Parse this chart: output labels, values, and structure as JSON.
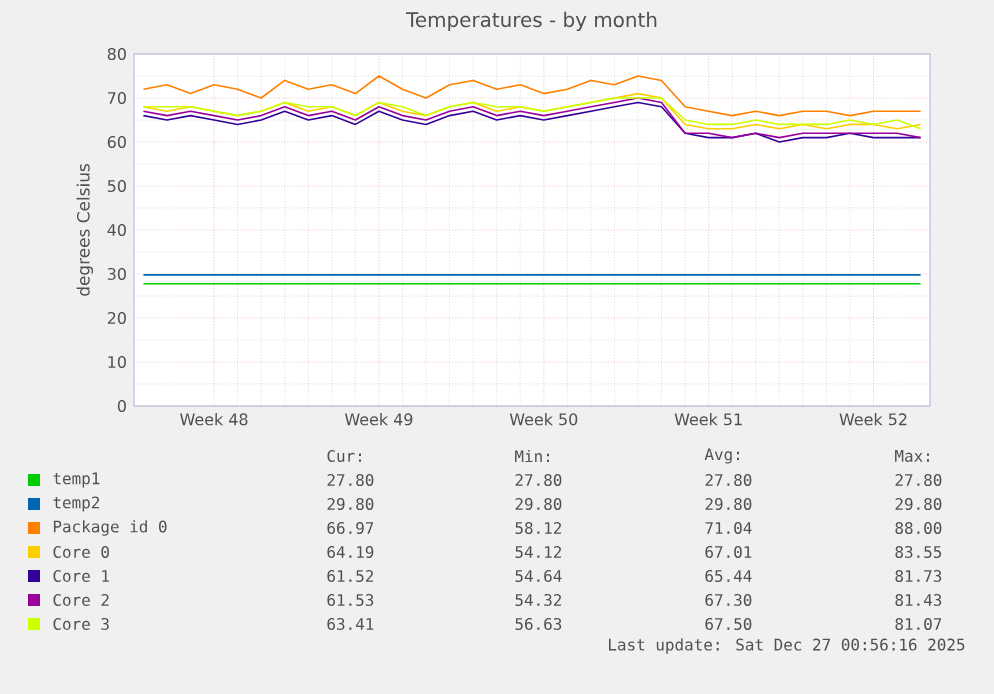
{
  "chart_data": {
    "type": "line",
    "title": "Temperatures - by month",
    "ylabel": "degrees Celsius",
    "categories": [
      null,
      null,
      null,
      "Week 48",
      null,
      null,
      null,
      null,
      null,
      null,
      "Week 49",
      null,
      null,
      null,
      null,
      null,
      null,
      "Week 50",
      null,
      null,
      null,
      null,
      null,
      null,
      "Week 51",
      null,
      null,
      null,
      null,
      null,
      null,
      "Week 52",
      null,
      null
    ],
    "ylim": [
      0,
      80
    ],
    "yticks": [
      0,
      10,
      20,
      30,
      40,
      50,
      60,
      70,
      80
    ],
    "grid": true,
    "legend": "bottom",
    "marker": "none",
    "line_style": "solid",
    "series": [
      {
        "name": "temp1",
        "color": "#00cc00",
        "values": [
          27.8,
          27.8,
          27.8,
          27.8,
          27.8,
          27.8,
          27.8,
          27.8,
          27.8,
          27.8,
          27.8,
          27.8,
          27.8,
          27.8,
          27.8,
          27.8,
          27.8,
          27.8,
          27.8,
          27.8,
          27.8,
          27.8,
          27.8,
          27.8,
          27.8,
          27.8,
          27.8,
          27.8,
          27.8,
          27.8,
          27.8,
          27.8,
          27.8,
          27.8
        ]
      },
      {
        "name": "temp2",
        "color": "#0066b3",
        "values": [
          29.8,
          29.8,
          29.8,
          29.8,
          29.8,
          29.8,
          29.8,
          29.8,
          29.8,
          29.8,
          29.8,
          29.8,
          29.8,
          29.8,
          29.8,
          29.8,
          29.8,
          29.8,
          29.8,
          29.8,
          29.8,
          29.8,
          29.8,
          29.8,
          29.8,
          29.8,
          29.8,
          29.8,
          29.8,
          29.8,
          29.8,
          29.8,
          29.8,
          29.8
        ]
      },
      {
        "name": "Package id 0",
        "color": "#ff8000",
        "values": [
          72,
          73,
          71,
          73,
          72,
          70,
          74,
          72,
          73,
          71,
          75,
          72,
          70,
          73,
          74,
          72,
          73,
          71,
          72,
          74,
          73,
          75,
          74,
          68,
          67,
          66,
          67,
          66,
          67,
          67,
          66,
          67,
          67,
          67
        ]
      },
      {
        "name": "Core 0",
        "color": "#ffcc00",
        "values": [
          68,
          67,
          68,
          67,
          66,
          67,
          69,
          67,
          68,
          66,
          69,
          67,
          66,
          68,
          69,
          67,
          68,
          67,
          68,
          69,
          70,
          71,
          70,
          64,
          63,
          63,
          64,
          63,
          64,
          63,
          64,
          64,
          63,
          64
        ]
      },
      {
        "name": "Core 1",
        "color": "#330099",
        "values": [
          66,
          65,
          66,
          65,
          64,
          65,
          67,
          65,
          66,
          64,
          67,
          65,
          64,
          66,
          67,
          65,
          66,
          65,
          66,
          67,
          68,
          69,
          68,
          62,
          61,
          61,
          62,
          60,
          61,
          61,
          62,
          61,
          61,
          61
        ]
      },
      {
        "name": "Core 2",
        "color": "#990099",
        "values": [
          67,
          66,
          67,
          66,
          65,
          66,
          68,
          66,
          67,
          65,
          68,
          66,
          65,
          67,
          68,
          66,
          67,
          66,
          67,
          68,
          69,
          70,
          69,
          62,
          62,
          61,
          62,
          61,
          62,
          62,
          62,
          62,
          62,
          61
        ]
      },
      {
        "name": "Core 3",
        "color": "#ccff00",
        "values": [
          68,
          68,
          68,
          67,
          66,
          67,
          69,
          68,
          68,
          66,
          69,
          68,
          66,
          68,
          69,
          68,
          68,
          67,
          68,
          69,
          70,
          70,
          70,
          65,
          64,
          64,
          65,
          64,
          64,
          64,
          65,
          64,
          65,
          63
        ]
      }
    ],
    "annotations": [
      "Cur:",
      "Min:",
      "Avg:",
      "Max:",
      "27.80",
      "27.80",
      "27.80",
      "27.80",
      "29.80",
      "29.80",
      "29.80",
      "29.80",
      "66.97",
      "58.12",
      "71.04",
      "88.00",
      "64.19",
      "54.12",
      "67.01",
      "83.55",
      "61.52",
      "54.64",
      "65.44",
      "81.73",
      "61.53",
      "54.32",
      "67.30",
      "81.43",
      "63.41",
      "56.63",
      "67.50",
      "81.07",
      "Last update: Sat Dec 27 00:56:16 2025"
    ]
  }
}
